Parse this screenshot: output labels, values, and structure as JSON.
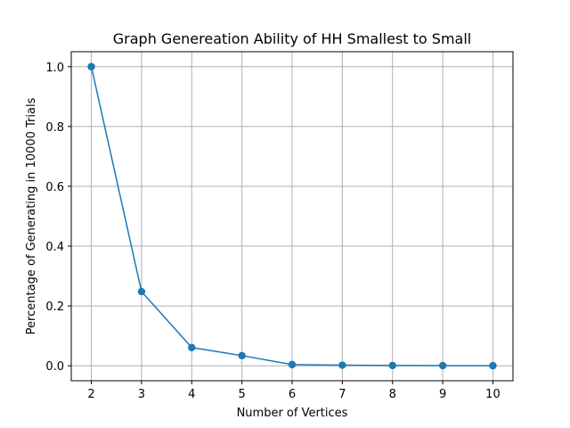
{
  "chart_data": {
    "type": "line",
    "title": "Graph Genereation Ability of HH Smallest to Small",
    "xlabel": "Number of Vertices",
    "ylabel": "Percentage of Generating in 10000 Trials",
    "x": [
      2,
      3,
      4,
      5,
      6,
      7,
      8,
      9,
      10
    ],
    "series": [
      {
        "values": [
          1.0,
          0.248,
          0.061,
          0.034,
          0.004,
          0.002,
          0.001,
          0.0005,
          0.0003
        ]
      }
    ],
    "xticks": [
      2,
      3,
      4,
      5,
      6,
      7,
      8,
      9,
      10
    ],
    "yticks": [
      0.0,
      0.2,
      0.4,
      0.6,
      0.8,
      1.0
    ],
    "ytick_labels": [
      "0.0",
      "0.2",
      "0.4",
      "0.6",
      "0.8",
      "1.0"
    ],
    "xlim": [
      1.6,
      10.4
    ],
    "ylim": [
      -0.05,
      1.05
    ],
    "grid": true,
    "marker": "circle",
    "color": "#1f77b4"
  }
}
